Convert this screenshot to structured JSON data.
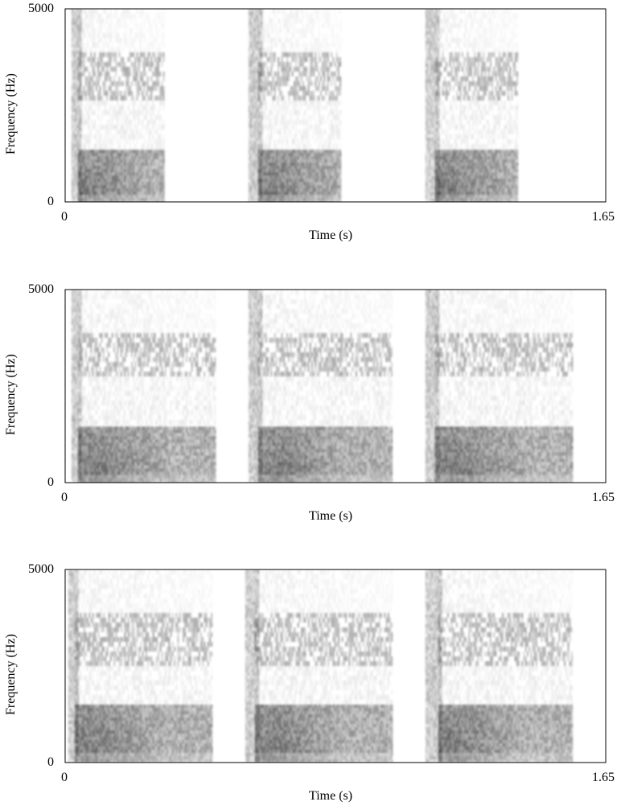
{
  "chart_data": [
    {
      "type": "heatmap",
      "title": "",
      "xlabel": "Time (s)",
      "ylabel": "Frequency (Hz)",
      "xlim": [
        0,
        1.65
      ],
      "ylim": [
        0,
        5000
      ],
      "x_tick_labels": [
        "0",
        "1.65"
      ],
      "y_tick_labels": [
        "0",
        "5000"
      ],
      "grid": false,
      "colormap": "greyscale",
      "segments": [
        {
          "start": 0.02,
          "end": 0.3,
          "voicing_start": 0.04,
          "low_band_hz": [
            0,
            1350
          ],
          "high_band_hz": [
            2700,
            3900
          ],
          "peak_onset": 0.06
        },
        {
          "start": 0.56,
          "end": 0.84,
          "voicing_start": 0.59,
          "low_band_hz": [
            0,
            1350
          ],
          "high_band_hz": [
            2700,
            3900
          ],
          "peak_onset": 0.62
        },
        {
          "start": 1.1,
          "end": 1.38,
          "voicing_start": 1.13,
          "low_band_hz": [
            0,
            1350
          ],
          "high_band_hz": [
            2700,
            3900
          ],
          "peak_onset": 1.16
        }
      ]
    },
    {
      "type": "heatmap",
      "title": "",
      "xlabel": "Time (s)",
      "ylabel": "Frequency (Hz)",
      "xlim": [
        0,
        1.65
      ],
      "ylim": [
        0,
        5000
      ],
      "x_tick_labels": [
        "0",
        "1.65"
      ],
      "y_tick_labels": [
        "0",
        "5000"
      ],
      "grid": false,
      "colormap": "greyscale",
      "segments": [
        {
          "start": 0.02,
          "end": 0.46,
          "voicing_start": 0.04,
          "low_band_hz": [
            0,
            1450
          ],
          "high_band_hz": [
            2800,
            3900
          ],
          "peak_onset": 0.1
        },
        {
          "start": 0.56,
          "end": 1.0,
          "voicing_start": 0.59,
          "low_band_hz": [
            0,
            1450
          ],
          "high_band_hz": [
            2800,
            3900
          ],
          "peak_onset": 0.65
        },
        {
          "start": 1.1,
          "end": 1.55,
          "voicing_start": 1.13,
          "low_band_hz": [
            0,
            1450
          ],
          "high_band_hz": [
            2800,
            3900
          ],
          "peak_onset": 1.19
        }
      ]
    },
    {
      "type": "heatmap",
      "title": "",
      "xlabel": "Time (s)",
      "ylabel": "Frequency (Hz)",
      "xlim": [
        0,
        1.65
      ],
      "ylim": [
        0,
        5000
      ],
      "x_tick_labels": [
        "0",
        "1.65"
      ],
      "y_tick_labels": [
        "0",
        "5000"
      ],
      "grid": false,
      "colormap": "greyscale",
      "segments": [
        {
          "start": 0.01,
          "end": 0.45,
          "voicing_start": 0.03,
          "low_band_hz": [
            0,
            1500
          ],
          "high_band_hz": [
            2600,
            3900
          ],
          "peak_onset": 0.08
        },
        {
          "start": 0.55,
          "end": 1.0,
          "voicing_start": 0.58,
          "low_band_hz": [
            0,
            1500
          ],
          "high_band_hz": [
            2600,
            3900
          ],
          "peak_onset": 0.63
        },
        {
          "start": 1.1,
          "end": 1.55,
          "voicing_start": 1.14,
          "low_band_hz": [
            0,
            1500
          ],
          "high_band_hz": [
            2600,
            3900
          ],
          "peak_onset": 1.18
        }
      ]
    }
  ]
}
